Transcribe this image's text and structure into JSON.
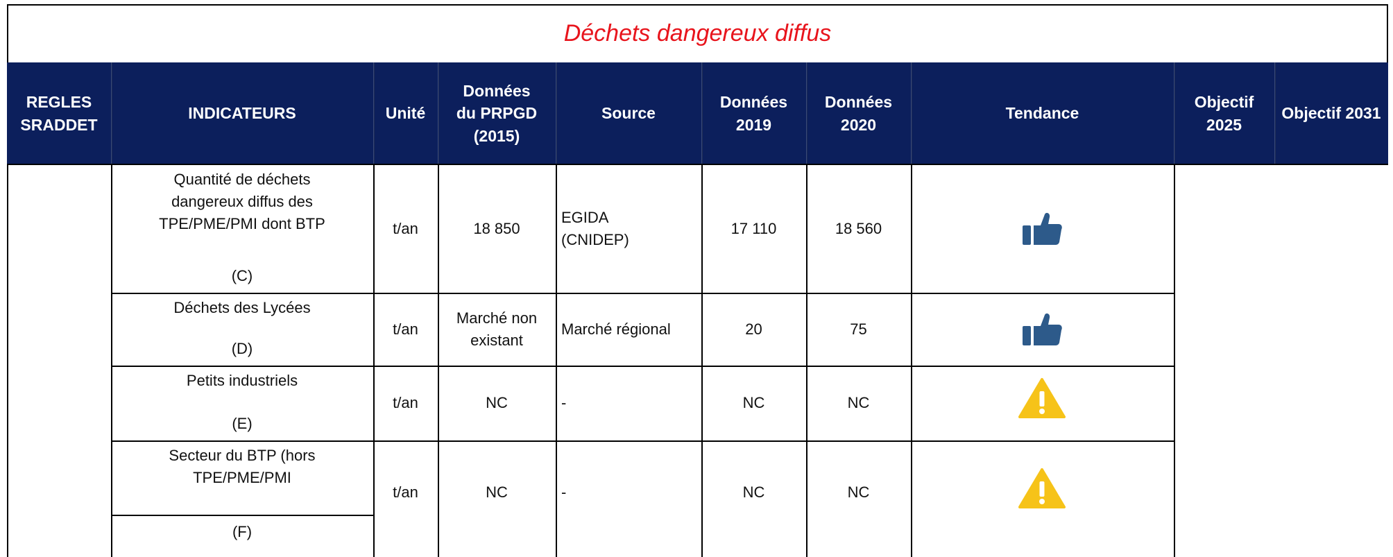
{
  "title": "Déchets dangereux diffus",
  "table": {
    "headers": [
      "REGLES SRADDET",
      "INDICATEURS",
      "Unité",
      "Données du PRPGD (2015)",
      "Source",
      "Données 2019",
      "Données 2020",
      "Tendance",
      "Objectif 2025",
      "Objectif 2031"
    ],
    "rows": [
      {
        "indicator": "Quantité de déchets dangereux diffus des TPE/PME/PMI dont BTP",
        "code": "(C)",
        "unit": "t/an",
        "prpgd": "18 850",
        "source": "EGIDA (CNIDEP)",
        "d2019": "17 110",
        "d2020": "18 560"
      },
      {
        "indicator": "Déchets des Lycées",
        "code": "(D)",
        "unit": "t/an",
        "prpgd": "Marché non existant",
        "source": "Marché régional",
        "d2019": "20",
        "d2020": "75"
      },
      {
        "indicator": "Petits industriels",
        "code": "(E)",
        "unit": "t/an",
        "prpgd": "NC",
        "source": "-",
        "d2019": "NC",
        "d2020": "NC"
      },
      {
        "indicator": "Secteur du BTP (hors TPE/PME/PMI",
        "code": "(F)",
        "unit": "t/an",
        "prpgd": "NC",
        "source": "-",
        "d2019": "NC",
        "d2020": "NC"
      }
    ]
  }
}
